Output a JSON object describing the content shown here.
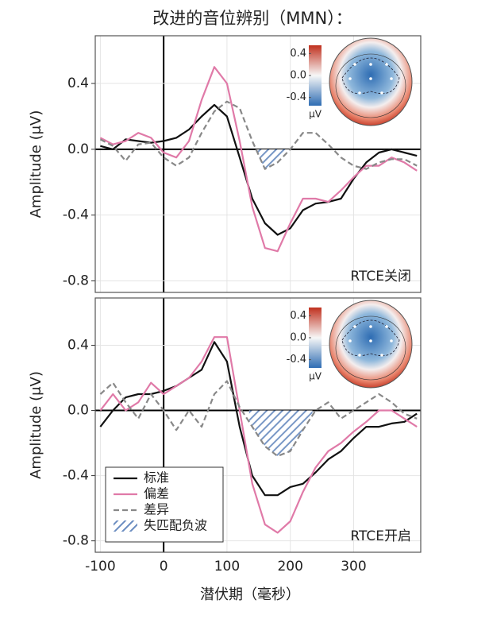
{
  "title": "改进的音位辨别（MMN）：",
  "chart_data": [
    {
      "type": "line",
      "ylabel": "Amplitude (μV)",
      "annotation": "RTCE关闭",
      "xlim": [
        -108,
        406
      ],
      "ylim": [
        -0.87,
        0.69
      ],
      "xticks": [
        -100,
        0,
        100,
        200,
        300
      ],
      "yticks": [
        0.4,
        {
          "value": 0,
          "label": "0.0"
        },
        -0.4,
        -0.8
      ],
      "grid": true,
      "x": [
        -100,
        -80,
        -60,
        -40,
        -20,
        0,
        20,
        40,
        60,
        80,
        100,
        120,
        140,
        160,
        180,
        200,
        220,
        240,
        260,
        280,
        300,
        320,
        340,
        360,
        380,
        400
      ],
      "series": [
        {
          "color": "#111111",
          "values": [
            0.02,
            0.0,
            0.06,
            0.05,
            0.04,
            0.05,
            0.07,
            0.12,
            0.2,
            0.27,
            0.2,
            -0.05,
            -0.3,
            -0.45,
            -0.52,
            -0.48,
            -0.37,
            -0.33,
            -0.32,
            -0.3,
            -0.18,
            -0.08,
            -0.02,
            0.0,
            -0.02,
            -0.04
          ]
        },
        {
          "color": "#e07aa8",
          "values": [
            0.07,
            0.03,
            0.05,
            0.1,
            0.07,
            -0.02,
            -0.05,
            0.05,
            0.3,
            0.5,
            0.4,
            0.05,
            -0.35,
            -0.6,
            -0.62,
            -0.45,
            -0.3,
            -0.3,
            -0.32,
            -0.25,
            -0.17,
            -0.1,
            -0.1,
            -0.05,
            -0.08,
            -0.13
          ]
        },
        {
          "color": "#888888",
          "dash": true,
          "values": [
            0.06,
            0.02,
            -0.07,
            0.03,
            0.04,
            -0.05,
            -0.1,
            -0.05,
            0.1,
            0.23,
            0.29,
            0.25,
            0.05,
            -0.12,
            -0.08,
            0.0,
            0.1,
            0.1,
            0.03,
            -0.05,
            -0.1,
            -0.12,
            -0.08,
            -0.06,
            -0.06,
            -0.1
          ]
        }
      ],
      "mmn_region": {
        "color": "#6a8cc0",
        "xrange": [
          145,
          205
        ]
      },
      "topomap": {
        "colorbar_ticks": [
          0.4,
          {
            "value": 0,
            "label": "0.0"
          },
          -0.4
        ],
        "unit": "μV"
      }
    },
    {
      "type": "line",
      "ylabel": "Amplitude (μV)",
      "xlabel": "潜伏期（毫秒）",
      "annotation": "RTCE开启",
      "xlim": [
        -108,
        406
      ],
      "ylim": [
        -0.87,
        0.69
      ],
      "xticks": [
        -100,
        0,
        100,
        200,
        300
      ],
      "yticks": [
        0.4,
        {
          "value": 0,
          "label": "0.0"
        },
        -0.4,
        -0.8
      ],
      "grid": true,
      "legend": "lower left",
      "x": [
        -100,
        -80,
        -60,
        -40,
        -20,
        0,
        20,
        40,
        60,
        80,
        100,
        120,
        140,
        160,
        180,
        200,
        220,
        240,
        260,
        280,
        300,
        320,
        340,
        360,
        380,
        400
      ],
      "series": [
        {
          "name": "标准",
          "color": "#111111",
          "values": [
            -0.1,
            0.0,
            0.08,
            0.1,
            0.1,
            0.12,
            0.15,
            0.2,
            0.25,
            0.42,
            0.3,
            -0.1,
            -0.4,
            -0.52,
            -0.52,
            -0.47,
            -0.45,
            -0.38,
            -0.3,
            -0.25,
            -0.17,
            -0.1,
            -0.1,
            -0.08,
            -0.07,
            -0.02
          ]
        },
        {
          "name": "偏差",
          "color": "#e07aa8",
          "values": [
            0.0,
            0.1,
            0.0,
            0.05,
            0.17,
            0.1,
            0.15,
            0.2,
            0.3,
            0.45,
            0.45,
            0.0,
            -0.45,
            -0.7,
            -0.75,
            -0.68,
            -0.5,
            -0.35,
            -0.25,
            -0.2,
            -0.13,
            -0.07,
            0.0,
            0.0,
            -0.05,
            -0.1
          ]
        },
        {
          "name": "差异",
          "color": "#888888",
          "dash": true,
          "values": [
            0.1,
            0.17,
            0.05,
            -0.05,
            0.1,
            0.0,
            -0.12,
            0.0,
            -0.1,
            0.1,
            0.18,
            0.02,
            -0.1,
            -0.22,
            -0.28,
            -0.25,
            -0.12,
            0.0,
            0.05,
            -0.05,
            0.0,
            0.05,
            0.1,
            0.05,
            -0.02,
            -0.05
          ]
        }
      ],
      "mmn_region": {
        "name": "失匹配负波",
        "color": "#6a8cc0",
        "xrange": [
          135,
          235
        ]
      },
      "topomap": {
        "colorbar_ticks": [
          0.4,
          {
            "value": 0,
            "label": "0.0"
          },
          -0.4
        ],
        "unit": "μV"
      }
    }
  ]
}
